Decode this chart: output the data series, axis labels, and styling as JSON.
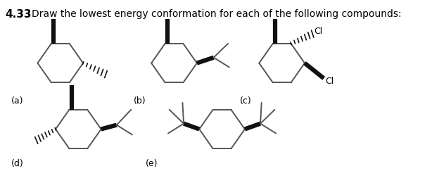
{
  "title": "4.33",
  "question": "Draw the lowest energy conformation for each of the following compounds:",
  "background_color": "#ffffff",
  "text_color": "#000000",
  "line_color": "#555555",
  "bold_line_color": "#111111",
  "labels": [
    "(a)",
    "(b)",
    "(c)",
    "(d)",
    "(e)"
  ],
  "figsize": [
    6.14,
    2.43
  ],
  "dpi": 100
}
